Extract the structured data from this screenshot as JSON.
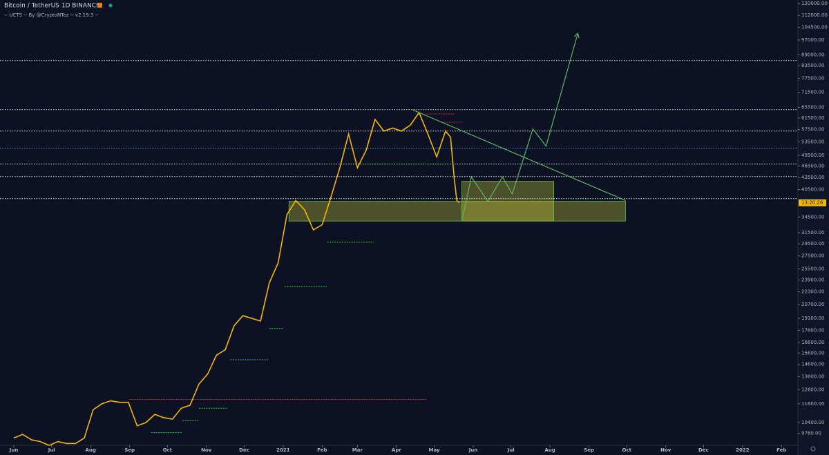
{
  "chart_data": {
    "type": "line",
    "title": "Bitcoin / TetherUS  1D  BINANCE",
    "subtitle": "-- UCTS -- By @CryptoNTez -- v2.19.3 --",
    "log_scale": true,
    "xlim": [
      -11,
      623
    ],
    "ylim": [
      9100,
      122500
    ],
    "xticks": [
      {
        "value": 0,
        "label": "Jun"
      },
      {
        "value": 30,
        "label": "Jul"
      },
      {
        "value": 61,
        "label": "Aug"
      },
      {
        "value": 92,
        "label": "Sep"
      },
      {
        "value": 122,
        "label": "Oct"
      },
      {
        "value": 153,
        "label": "Nov"
      },
      {
        "value": 183,
        "label": "Dec"
      },
      {
        "value": 214,
        "label": "2021"
      },
      {
        "value": 245,
        "label": "Feb"
      },
      {
        "value": 273,
        "label": "Mar"
      },
      {
        "value": 304,
        "label": "Apr"
      },
      {
        "value": 334,
        "label": "May"
      },
      {
        "value": 365,
        "label": "Jun"
      },
      {
        "value": 395,
        "label": "Jul"
      },
      {
        "value": 426,
        "label": "Aug"
      },
      {
        "value": 457,
        "label": "Sep"
      },
      {
        "value": 487,
        "label": "Oct"
      },
      {
        "value": 518,
        "label": "Nov"
      },
      {
        "value": 548,
        "label": "Dec"
      },
      {
        "value": 579,
        "label": "2022"
      },
      {
        "value": 610,
        "label": "Feb"
      }
    ],
    "yticks": [
      {
        "value": 120000,
        "label": "120000.00"
      },
      {
        "value": 112000,
        "label": "112000.00"
      },
      {
        "value": 104500,
        "label": "104500.00"
      },
      {
        "value": 97000,
        "label": "97000.00"
      },
      {
        "value": 89000,
        "label": "89000.00"
      },
      {
        "value": 83500,
        "label": "83500.00"
      },
      {
        "value": 77500,
        "label": "77500.00"
      },
      {
        "value": 71500,
        "label": "71500.00"
      },
      {
        "value": 65500,
        "label": "65500.00"
      },
      {
        "value": 61500,
        "label": "61500.00"
      },
      {
        "value": 57500,
        "label": "57500.00"
      },
      {
        "value": 53500,
        "label": "53500.00"
      },
      {
        "value": 49500,
        "label": "49500.00"
      },
      {
        "value": 46500,
        "label": "46500.00"
      },
      {
        "value": 43500,
        "label": "43500.00"
      },
      {
        "value": 40500,
        "label": "40500.00"
      },
      {
        "value": 34500,
        "label": "34500.00"
      },
      {
        "value": 31500,
        "label": "31500.00"
      },
      {
        "value": 29500,
        "label": "29500.00"
      },
      {
        "value": 27500,
        "label": "27500.00"
      },
      {
        "value": 25500,
        "label": "25500.00"
      },
      {
        "value": 23900,
        "label": "23900.00"
      },
      {
        "value": 22300,
        "label": "22300.00"
      },
      {
        "value": 20700,
        "label": "20700.00"
      },
      {
        "value": 19100,
        "label": "19100.00"
      },
      {
        "value": 17800,
        "label": "17800.00"
      },
      {
        "value": 16600,
        "label": "16600.00"
      },
      {
        "value": 15600,
        "label": "15600.00"
      },
      {
        "value": 14600,
        "label": "14600.00"
      },
      {
        "value": 13600,
        "label": "13600.00"
      },
      {
        "value": 12600,
        "label": "12600.00"
      },
      {
        "value": 11600,
        "label": "11600.00"
      },
      {
        "value": 10400,
        "label": "10400.00"
      },
      {
        "value": 9760,
        "label": "9760.00"
      }
    ],
    "series": [
      {
        "color": "#f5b700",
        "x": [
          0,
          7,
          14,
          21,
          28,
          35,
          42,
          49,
          56,
          63,
          70,
          77,
          84,
          91,
          98,
          105,
          112,
          119,
          126,
          133,
          140,
          147,
          154,
          161,
          168,
          175,
          182,
          189,
          196,
          203,
          210,
          217,
          224,
          231,
          238,
          245,
          252,
          259,
          266,
          273,
          280,
          287,
          294,
          301,
          308,
          315,
          322,
          329,
          336,
          343,
          347,
          350,
          352,
          354
        ],
        "values": [
          9500,
          9700,
          9400,
          9300,
          9100,
          9300,
          9200,
          9200,
          9500,
          11200,
          11600,
          11800,
          11700,
          11700,
          10200,
          10400,
          10900,
          10700,
          10600,
          11300,
          11500,
          13000,
          13800,
          15400,
          15900,
          18300,
          19400,
          19100,
          18800,
          23500,
          26400,
          35000,
          38000,
          36000,
          32000,
          33000,
          38800,
          46000,
          56000,
          46000,
          51000,
          61000,
          57000,
          58000,
          57000,
          59000,
          63500,
          56000,
          49000,
          57000,
          55000,
          43000,
          38000,
          37500
        ]
      }
    ],
    "levels": [
      {
        "value": 86000,
        "color": "#e8e8e8"
      },
      {
        "value": 64600,
        "color": "#e8e8e8"
      },
      {
        "value": 57000,
        "color": "#e8e8e8"
      },
      {
        "value": 51600,
        "color": "#4aa3df"
      },
      {
        "value": 47000,
        "color": "#e8e8e8"
      },
      {
        "value": 43700,
        "color": "#e8e8e8"
      },
      {
        "value": 38400,
        "color": "#e8e8e8"
      }
    ],
    "segments": [
      {
        "x": [
          92,
          328
        ],
        "value": 11900,
        "color": "#d32f2f"
      },
      {
        "x": [
          109,
          134
        ],
        "value": 9800,
        "color": "#2ecc40"
      },
      {
        "x": [
          134,
          147
        ],
        "value": 10500,
        "color": "#2ecc40"
      },
      {
        "x": [
          147,
          170
        ],
        "value": 11300,
        "color": "#2ecc40"
      },
      {
        "x": [
          172,
          202
        ],
        "value": 15000,
        "color": "#2ecc40"
      },
      {
        "x": [
          203,
          214
        ],
        "value": 18000,
        "color": "#2ecc40"
      },
      {
        "x": [
          215,
          249
        ],
        "value": 23000,
        "color": "#2ecc40"
      },
      {
        "x": [
          249,
          286
        ],
        "value": 29800,
        "color": "#2ecc40"
      },
      {
        "x": [
          275,
          346
        ],
        "value": 47000,
        "color": "#2ecc40"
      },
      {
        "x": [
          328,
          350
        ],
        "value": 63000,
        "color": "#d32f2f"
      },
      {
        "x": [
          340,
          356
        ],
        "value": 60000,
        "color": "#d32f2f"
      }
    ],
    "zones": [
      {
        "x": [
          218.6,
          486
        ],
        "values": [
          33700,
          37800
        ],
        "color": "#c8c83a"
      },
      {
        "x": [
          356,
          429
        ],
        "values": [
          33700,
          42500
        ],
        "color": "#c8c83a"
      }
    ],
    "trendline": {
      "x": [
        317,
        486
      ],
      "values": [
        64500,
        38000
      ],
      "color": "#5cb85c"
    },
    "projection": {
      "x": [
        356,
        363.5,
        376.7,
        388.2,
        396,
        412.4,
        422.9,
        448.1
      ],
      "values": [
        33700,
        43600,
        37800,
        43600,
        39500,
        57700,
        52200,
        100800
      ],
      "color": "#5cb85c"
    },
    "price_label": {
      "value": 37500,
      "label": "13:20:26"
    }
  }
}
